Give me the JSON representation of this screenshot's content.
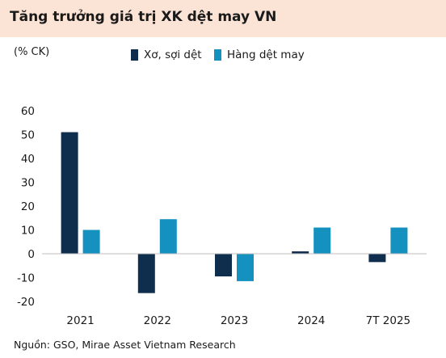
{
  "header": {
    "title": "Tăng trưởng giá trị XK dệt may VN"
  },
  "source": "Nguồn: GSO, Mirae Asset Vietnam Research",
  "chart_data": {
    "type": "bar",
    "unit_label": "(% CK)",
    "categories": [
      "2021",
      "2022",
      "2023",
      "2024",
      "7T 2025"
    ],
    "series": [
      {
        "name": "Xơ, sợi dệt",
        "color": "#0f2d4d",
        "values": [
          51,
          -16.5,
          -9.5,
          1,
          -3.5
        ]
      },
      {
        "name": "Hàng dệt may",
        "color": "#1591c0",
        "values": [
          10,
          14.5,
          -11.5,
          11,
          11
        ]
      }
    ],
    "ylim": [
      -20,
      60
    ],
    "yticks": [
      60,
      50,
      40,
      30,
      20,
      10,
      0,
      -10,
      -20
    ],
    "grid": false,
    "legend_position": "top"
  }
}
